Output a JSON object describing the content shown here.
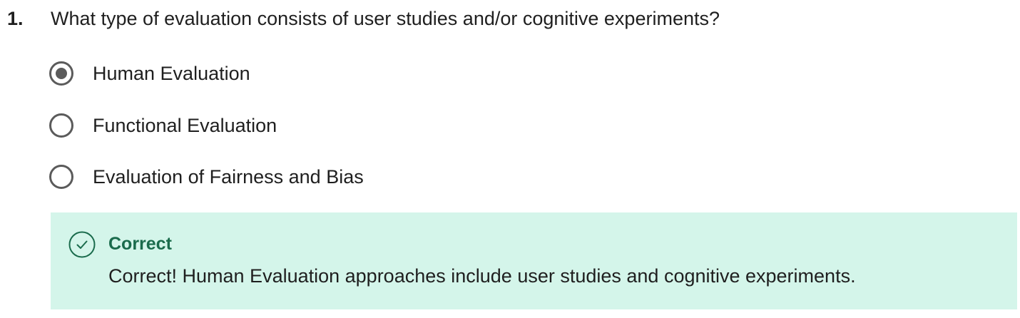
{
  "question": {
    "number": "1.",
    "text": "What type of evaluation consists of user studies and/or cognitive experiments?"
  },
  "options": [
    {
      "label": "Human Evaluation",
      "selected": true
    },
    {
      "label": "Functional Evaluation",
      "selected": false
    },
    {
      "label": "Evaluation of Fairness and Bias",
      "selected": false
    }
  ],
  "feedback": {
    "icon": "check-circle-icon",
    "title": "Correct",
    "text": "Correct! Human Evaluation approaches include user studies and cognitive experiments.",
    "background_color": "#d4f5ea",
    "accent_color": "#1a6b4c"
  }
}
